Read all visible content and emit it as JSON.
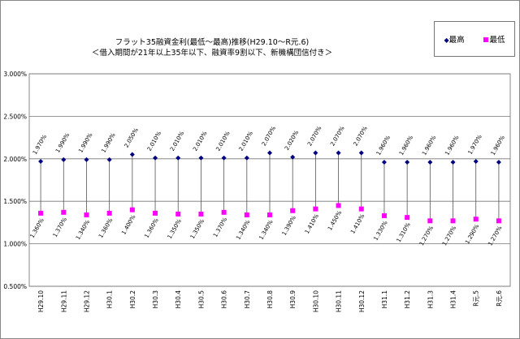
{
  "chart_data": {
    "type": "line",
    "title": "フラット35融資金利(最低～最高)推移(H29.10～R元.6)",
    "subtitle": "＜借入期間が21年以上35年以下、融資率9割以下、新機構団信付き＞",
    "xlabel": "",
    "ylabel": "",
    "ylim": [
      0.5,
      3.0
    ],
    "yticks": [
      "0.500%",
      "1.000%",
      "1.500%",
      "2.000%",
      "2.500%",
      "3.000%"
    ],
    "grid": true,
    "legend_position": "top-right",
    "categories": [
      "H29.10",
      "H29.11",
      "H29.12",
      "H30.1",
      "H30.2",
      "H30.3",
      "H30.4",
      "H30.5",
      "H30.6",
      "H30.7",
      "H30.8",
      "H30.9",
      "H30.10",
      "H30.11",
      "H30.12",
      "H31.1",
      "H31.2",
      "H31.3",
      "H31.4",
      "R元.5",
      "R元.6"
    ],
    "series": [
      {
        "name": "最高",
        "color": "#000080",
        "values": [
          1.97,
          1.99,
          1.99,
          1.99,
          2.05,
          2.01,
          2.01,
          2.01,
          2.01,
          2.01,
          2.07,
          2.02,
          2.07,
          2.07,
          2.07,
          1.96,
          1.96,
          1.96,
          1.96,
          1.97,
          1.96
        ],
        "labels": [
          "1.970%",
          "1.990%",
          "1.990%",
          "1.990%",
          "2.050%",
          "2.010%",
          "2.010%",
          "2.010%",
          "2.010%",
          "2.010%",
          "2.070%",
          "2.020%",
          "2.070%",
          "2.070%",
          "2.070%",
          "1.960%",
          "1.960%",
          "1.960%",
          "1.960%",
          "1.970%",
          "1.960%"
        ]
      },
      {
        "name": "最低",
        "color": "#FF00FF",
        "values": [
          1.36,
          1.37,
          1.34,
          1.36,
          1.4,
          1.36,
          1.35,
          1.35,
          1.37,
          1.34,
          1.34,
          1.39,
          1.41,
          1.45,
          1.41,
          1.33,
          1.31,
          1.27,
          1.27,
          1.29,
          1.27
        ],
        "labels": [
          "1.360%",
          "1.370%",
          "1.340%",
          "1.360%",
          "1.400%",
          "1.360%",
          "1.350%",
          "1.350%",
          "1.370%",
          "1.340%",
          "1.340%",
          "1.390%",
          "1.410%",
          "1.450%",
          "1.410%",
          "1.330%",
          "1.310%",
          "1.270%",
          "1.270%",
          "1.290%",
          "1.270%"
        ]
      }
    ]
  }
}
